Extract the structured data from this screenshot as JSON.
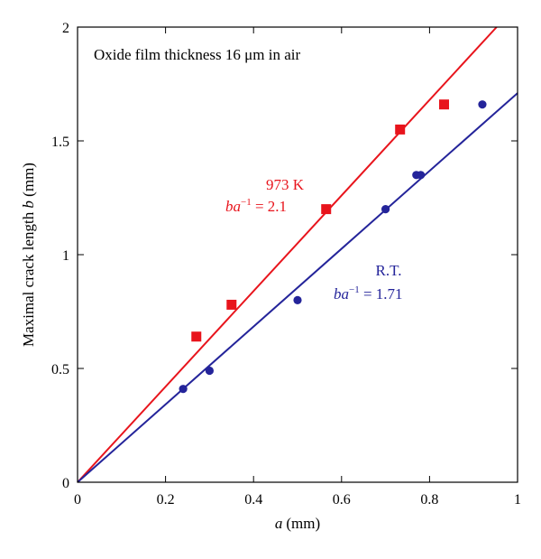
{
  "chart_data": {
    "type": "scatter",
    "annotation_title": "Oxide film thickness 16 μm in air",
    "xlabel_var": "a",
    "xlabel_unit": "(mm)",
    "ylabel_text": "Maximal crack length ",
    "ylabel_var": "b",
    "ylabel_unit": " (mm)",
    "xlim": [
      0,
      1
    ],
    "ylim": [
      0,
      2
    ],
    "xticks": [
      {
        "v": 0,
        "label": "0"
      },
      {
        "v": 0.2,
        "label": "0.2"
      },
      {
        "v": 0.4,
        "label": "0.4"
      },
      {
        "v": 0.6,
        "label": "0.6"
      },
      {
        "v": 0.8,
        "label": "0.8"
      },
      {
        "v": 1,
        "label": "1"
      }
    ],
    "yticks": [
      {
        "v": 0,
        "label": "0"
      },
      {
        "v": 0.5,
        "label": "0.5"
      },
      {
        "v": 1,
        "label": "1"
      },
      {
        "v": 1.5,
        "label": "1.5"
      },
      {
        "v": 2,
        "label": "2"
      }
    ],
    "grid": false,
    "series": [
      {
        "name": "973 K",
        "color": "#e8141c",
        "marker": "square",
        "fit_slope": 2.1,
        "label_line1": "973 K",
        "label_line2_var": "ba",
        "label_line2_exp": "−1",
        "label_line2_value": " = 2.1",
        "points": [
          {
            "x": 0.27,
            "y": 0.64
          },
          {
            "x": 0.35,
            "y": 0.78
          },
          {
            "x": 0.565,
            "y": 1.2
          },
          {
            "x": 0.733,
            "y": 1.55
          },
          {
            "x": 0.833,
            "y": 1.66
          }
        ]
      },
      {
        "name": "R.T.",
        "color": "#24249a",
        "marker": "circle",
        "fit_slope": 1.71,
        "label_line1": "R.T.",
        "label_line2_var": "ba",
        "label_line2_exp": "−1",
        "label_line2_value": " = 1.71",
        "points": [
          {
            "x": 0.24,
            "y": 0.41
          },
          {
            "x": 0.3,
            "y": 0.49
          },
          {
            "x": 0.5,
            "y": 0.8
          },
          {
            "x": 0.7,
            "y": 1.2
          },
          {
            "x": 0.77,
            "y": 1.35
          },
          {
            "x": 0.78,
            "y": 1.35
          },
          {
            "x": 0.92,
            "y": 1.66
          }
        ]
      }
    ]
  }
}
